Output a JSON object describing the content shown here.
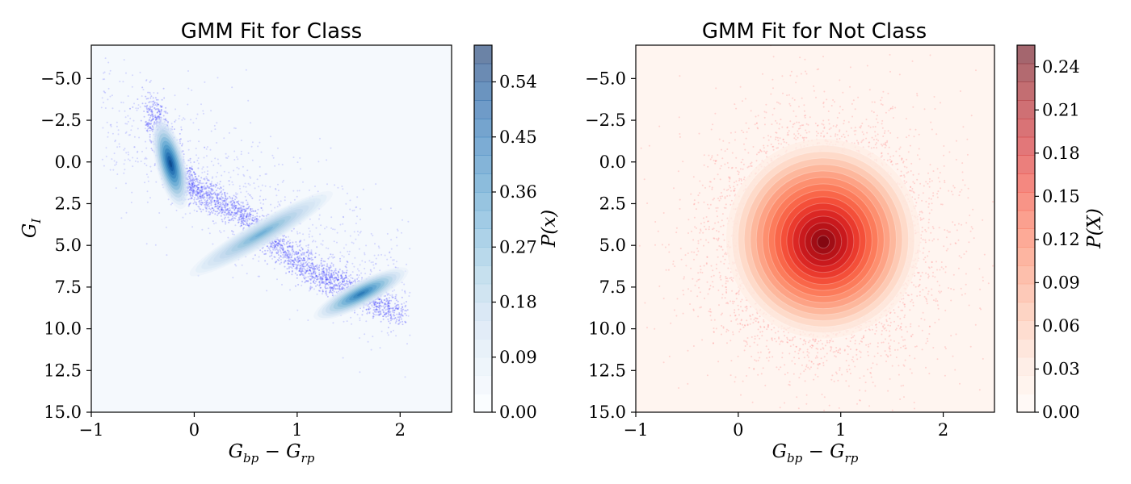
{
  "chart_data": [
    {
      "type": "scatter",
      "title": "GMM Fit for Class",
      "xlabel": "G_bp − G_rp",
      "ylabel": "G_I",
      "xlim": [
        -1,
        2.5
      ],
      "ylim": [
        15.0,
        -7.0
      ],
      "y_inverted": true,
      "x_ticks": [
        -1,
        0,
        1,
        2
      ],
      "x_tick_labels": [
        "−1",
        "0",
        "1",
        "2"
      ],
      "y_ticks": [
        -5.0,
        -2.5,
        0.0,
        2.5,
        5.0,
        7.5,
        10.0,
        12.5,
        15.0
      ],
      "y_tick_labels": [
        "−5.0",
        "−2.5",
        "0.0",
        "2.5",
        "5.0",
        "7.5",
        "10.0",
        "12.5",
        "15.0"
      ],
      "colorbar": {
        "label": "P(x)",
        "max": 0.6,
        "ticks": [
          0.0,
          0.09,
          0.18,
          0.27,
          0.36,
          0.45,
          0.54
        ],
        "tick_labels": [
          "0.00",
          "0.09",
          "0.18",
          "0.27",
          "0.36",
          "0.45",
          "0.54"
        ]
      },
      "colormap": "Blues",
      "colors": {
        "background": "#f5f9fd",
        "scatter": "#3b3bff",
        "density_peak": "#08306b"
      },
      "ridge": [
        [
          -0.42,
          -3.5
        ],
        [
          -0.3,
          -1.5
        ],
        [
          -0.18,
          0.5
        ],
        [
          -0.05,
          1.5
        ],
        [
          0.2,
          2.2
        ],
        [
          0.5,
          3.3
        ],
        [
          0.8,
          5.0
        ],
        [
          1.1,
          6.4
        ],
        [
          1.4,
          7.3
        ],
        [
          1.7,
          8.2
        ],
        [
          2.0,
          9.0
        ]
      ],
      "density_components": [
        {
          "x": -0.23,
          "y": 0.2,
          "peak": 0.6
        },
        {
          "x": 1.6,
          "y": 7.8,
          "peak": 0.45
        },
        {
          "x": 0.6,
          "y": 4.2,
          "peak": 0.3
        }
      ]
    },
    {
      "type": "scatter",
      "title": "GMM Fit for Not Class",
      "xlabel": "G_bp − G_rp",
      "ylabel": "",
      "xlim": [
        -1,
        2.5
      ],
      "ylim": [
        15.0,
        -7.0
      ],
      "y_inverted": true,
      "x_ticks": [
        -1,
        0,
        1,
        2
      ],
      "x_tick_labels": [
        "−1",
        "0",
        "1",
        "2"
      ],
      "y_ticks": [
        -5.0,
        -2.5,
        0.0,
        2.5,
        5.0,
        7.5,
        10.0,
        12.5,
        15.0
      ],
      "y_tick_labels": [
        "−5.0",
        "−2.5",
        "0.0",
        "2.5",
        "5.0",
        "7.5",
        "10.0",
        "12.5",
        "15.0"
      ],
      "colorbar": {
        "label": "P(X)",
        "max": 0.255,
        "ticks": [
          0.0,
          0.03,
          0.06,
          0.09,
          0.12,
          0.15,
          0.18,
          0.21,
          0.24
        ],
        "tick_labels": [
          "0.00",
          "0.03",
          "0.06",
          "0.09",
          "0.12",
          "0.15",
          "0.18",
          "0.21",
          "0.24"
        ]
      },
      "colormap": "Reds",
      "colors": {
        "background": "#fff5f0",
        "scatter": "#ff7070",
        "density_peak": "#67000d"
      },
      "density_components": [
        {
          "x": 0.83,
          "y": 4.8,
          "peak": 0.255
        }
      ]
    }
  ]
}
